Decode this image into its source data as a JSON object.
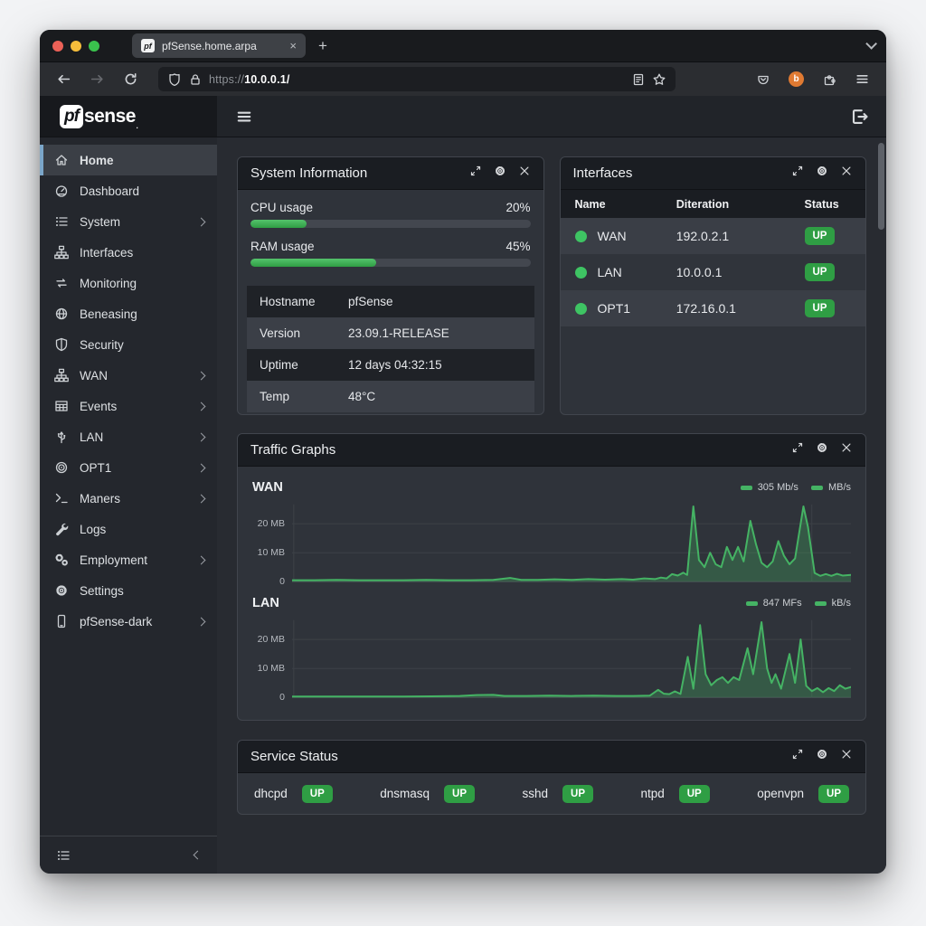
{
  "browser": {
    "tab_title": "pfSense.home.arpa",
    "url_scheme": "https://",
    "url_host": "10.0.0.1/",
    "favicon_text": "pf"
  },
  "brand": {
    "logo_box": "pf",
    "logo_rest": "sense",
    "logo_mark": "."
  },
  "sidebar": {
    "items": [
      {
        "label": "Home",
        "icon": "home-icon",
        "active": true,
        "chevron": false
      },
      {
        "label": "Dashboard",
        "icon": "gauge-icon",
        "active": false,
        "chevron": false
      },
      {
        "label": "System",
        "icon": "list-icon",
        "active": false,
        "chevron": true
      },
      {
        "label": "Interfaces",
        "icon": "sitemap-icon",
        "active": false,
        "chevron": false
      },
      {
        "label": "Monitoring",
        "icon": "exchange-icon",
        "active": false,
        "chevron": false
      },
      {
        "label": "Beneasing",
        "icon": "globe-icon",
        "active": false,
        "chevron": false
      },
      {
        "label": "Security",
        "icon": "shield-icon",
        "active": false,
        "chevron": false
      },
      {
        "label": "WAN",
        "icon": "sitemap-icon",
        "active": false,
        "chevron": true
      },
      {
        "label": "Events",
        "icon": "table-icon",
        "active": false,
        "chevron": true
      },
      {
        "label": "LAN",
        "icon": "usb-icon",
        "active": false,
        "chevron": true
      },
      {
        "label": "OPT1",
        "icon": "fingerprint-icon",
        "active": false,
        "chevron": true
      },
      {
        "label": "Maners",
        "icon": "terminal-icon",
        "active": false,
        "chevron": true
      },
      {
        "label": "Logs",
        "icon": "wrench-icon",
        "active": false,
        "chevron": false
      },
      {
        "label": "Employment",
        "icon": "gears-icon",
        "active": false,
        "chevron": true
      },
      {
        "label": "Settings",
        "icon": "gear-icon",
        "active": false,
        "chevron": false
      },
      {
        "label": "pfSense-dark",
        "icon": "phone-icon",
        "active": false,
        "chevron": true
      }
    ]
  },
  "widgets": {
    "system_information": {
      "title": "System Information",
      "meters": [
        {
          "label": "CPU usage",
          "percent": 20,
          "display": "20%"
        },
        {
          "label": "RAM usage",
          "percent": 45,
          "display": "45%"
        }
      ],
      "rows": [
        {
          "label": "Hostname",
          "value": "pfSense"
        },
        {
          "label": "Version",
          "value": "23.09.1-RELEASE"
        },
        {
          "label": "Uptime",
          "value": "12 days 04:32:15"
        },
        {
          "label": "Temp",
          "value": "48°C"
        }
      ]
    },
    "interfaces": {
      "title": "Interfaces",
      "columns": [
        "Name",
        "Diteration",
        "Status"
      ],
      "rows": [
        {
          "name": "WAN",
          "address": "192.0.2.1",
          "status": "UP"
        },
        {
          "name": "LAN",
          "address": "10.0.0.1",
          "status": "UP"
        },
        {
          "name": "OPT1",
          "address": "172.16.0.1",
          "status": "UP"
        }
      ]
    },
    "traffic_graphs": {
      "title": "Traffic Graphs"
    },
    "service_status": {
      "title": "Service Status",
      "services": [
        {
          "name": "dhcpd",
          "status": "UP"
        },
        {
          "name": "dnsmasq",
          "status": "UP"
        },
        {
          "name": "sshd",
          "status": "UP"
        },
        {
          "name": "ntpd",
          "status": "UP"
        },
        {
          "name": "openvpn",
          "status": "UP"
        }
      ]
    }
  },
  "chart_data": [
    {
      "type": "area",
      "title": "WAN",
      "legend": [
        {
          "label": "305 Mb/s",
          "color": "#45b364"
        },
        {
          "label": "MB/s",
          "color": "#45b364"
        }
      ],
      "ylim": [
        0,
        27
      ],
      "yticks": [
        20,
        10,
        0
      ],
      "ytick_labels": [
        "20 MB",
        "10 MB",
        "0"
      ],
      "grid": true,
      "x_range": [
        0,
        100
      ],
      "points": [
        [
          0,
          0.5
        ],
        [
          4,
          0.5
        ],
        [
          8,
          0.6
        ],
        [
          12,
          0.5
        ],
        [
          16,
          0.5
        ],
        [
          20,
          0.5
        ],
        [
          24,
          0.6
        ],
        [
          28,
          0.5
        ],
        [
          32,
          0.5
        ],
        [
          36,
          0.6
        ],
        [
          39,
          1.3
        ],
        [
          41,
          0.6
        ],
        [
          44,
          0.6
        ],
        [
          47,
          0.8
        ],
        [
          50,
          0.6
        ],
        [
          53,
          0.9
        ],
        [
          56,
          0.7
        ],
        [
          59,
          0.9
        ],
        [
          61,
          0.7
        ],
        [
          63,
          1.1
        ],
        [
          65,
          0.9
        ],
        [
          66,
          1.4
        ],
        [
          67,
          1.1
        ],
        [
          68,
          2.6
        ],
        [
          69,
          2.1
        ],
        [
          70,
          3.1
        ],
        [
          70.7,
          2.3
        ],
        [
          71.8,
          26
        ],
        [
          72.8,
          7.5
        ],
        [
          73.8,
          5
        ],
        [
          74.8,
          10
        ],
        [
          75.8,
          6
        ],
        [
          76.8,
          5
        ],
        [
          77.8,
          12
        ],
        [
          78.8,
          7.5
        ],
        [
          79.8,
          12
        ],
        [
          80.8,
          7
        ],
        [
          82,
          21
        ],
        [
          83,
          13
        ],
        [
          84,
          6.5
        ],
        [
          85,
          5
        ],
        [
          86,
          7
        ],
        [
          87,
          14
        ],
        [
          88,
          9
        ],
        [
          89,
          6
        ],
        [
          90,
          8
        ],
        [
          91.5,
          26
        ],
        [
          92.3,
          19
        ],
        [
          93.5,
          3
        ],
        [
          94.5,
          2
        ],
        [
          95.5,
          2.6
        ],
        [
          96.5,
          2
        ],
        [
          97.5,
          2.7
        ],
        [
          98.5,
          2.1
        ],
        [
          100,
          2.3
        ]
      ]
    },
    {
      "type": "area",
      "title": "LAN",
      "legend": [
        {
          "label": "847 MFs",
          "color": "#45b364"
        },
        {
          "label": "kB/s",
          "color": "#45b364"
        }
      ],
      "ylim": [
        0,
        27
      ],
      "yticks": [
        20,
        10,
        0
      ],
      "ytick_labels": [
        "20 MB",
        "10 MB",
        "0"
      ],
      "grid": true,
      "x_range": [
        0,
        100
      ],
      "points": [
        [
          0,
          0.3
        ],
        [
          5,
          0.3
        ],
        [
          10,
          0.3
        ],
        [
          15,
          0.3
        ],
        [
          20,
          0.3
        ],
        [
          25,
          0.4
        ],
        [
          30,
          0.5
        ],
        [
          33,
          0.8
        ],
        [
          36,
          0.9
        ],
        [
          38,
          0.5
        ],
        [
          42,
          0.5
        ],
        [
          46,
          0.6
        ],
        [
          50,
          0.5
        ],
        [
          54,
          0.6
        ],
        [
          58,
          0.5
        ],
        [
          61,
          0.5
        ],
        [
          64,
          0.6
        ],
        [
          65.5,
          2.6
        ],
        [
          66.5,
          1.3
        ],
        [
          67.5,
          1.1
        ],
        [
          68.5,
          2.1
        ],
        [
          69.5,
          1.2
        ],
        [
          70.8,
          14
        ],
        [
          71.8,
          3
        ],
        [
          73,
          25
        ],
        [
          74,
          8
        ],
        [
          75,
          4.2
        ],
        [
          76,
          6
        ],
        [
          77,
          7
        ],
        [
          78,
          5
        ],
        [
          79,
          7
        ],
        [
          80,
          6
        ],
        [
          81.5,
          17
        ],
        [
          82.5,
          8
        ],
        [
          84,
          26
        ],
        [
          85,
          10
        ],
        [
          85.8,
          5
        ],
        [
          86.5,
          8
        ],
        [
          87.5,
          3
        ],
        [
          89,
          15
        ],
        [
          90,
          5
        ],
        [
          91,
          20
        ],
        [
          92,
          4
        ],
        [
          93,
          2.2
        ],
        [
          94,
          3.2
        ],
        [
          95,
          1.8
        ],
        [
          96,
          3.2
        ],
        [
          97,
          2.2
        ],
        [
          98,
          4.2
        ],
        [
          99,
          3
        ],
        [
          100,
          3.6
        ]
      ]
    }
  ],
  "colors": {
    "badge_green": "#2f9e44",
    "dot_green": "#3ec463",
    "graph_line": "#45b364",
    "graph_fill": "rgba(69,179,100,0.3)",
    "active_accent": "#7ba6c9"
  }
}
